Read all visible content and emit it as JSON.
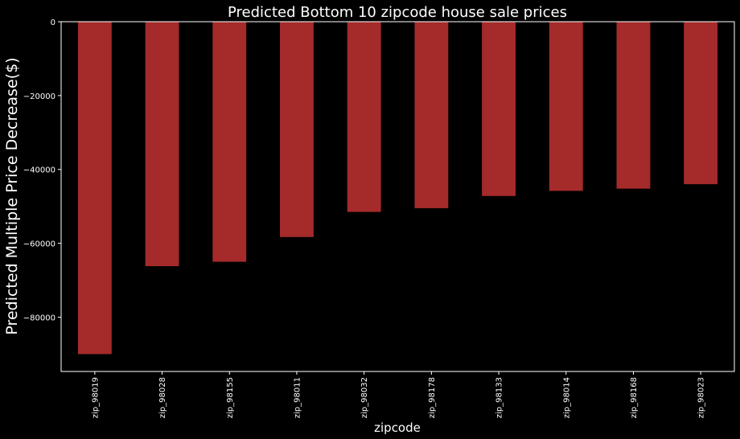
{
  "chart_data": {
    "type": "bar",
    "title": "Predicted Bottom 10 zipcode house sale prices",
    "xlabel": "zipcode",
    "ylabel": "Predicted Multiple Price Decrease($)",
    "categories": [
      "zip_98019",
      "zip_98028",
      "zip_98155",
      "zip_98011",
      "zip_98032",
      "zip_98178",
      "zip_98133",
      "zip_98014",
      "zip_98168",
      "zip_98023"
    ],
    "values": [
      -90000,
      -66200,
      -65000,
      -58300,
      -51500,
      -50500,
      -47200,
      -45800,
      -45200,
      -44000
    ],
    "ylim": [
      -94700,
      0
    ],
    "yticks": [
      0,
      -20000,
      -40000,
      -60000,
      -80000
    ],
    "ytick_labels": [
      "0",
      "−20000",
      "−40000",
      "−60000",
      "−80000"
    ],
    "grid": false,
    "bar_color": "#a52a2a",
    "background_color": "#000000",
    "axis_color": "#ffffff"
  }
}
